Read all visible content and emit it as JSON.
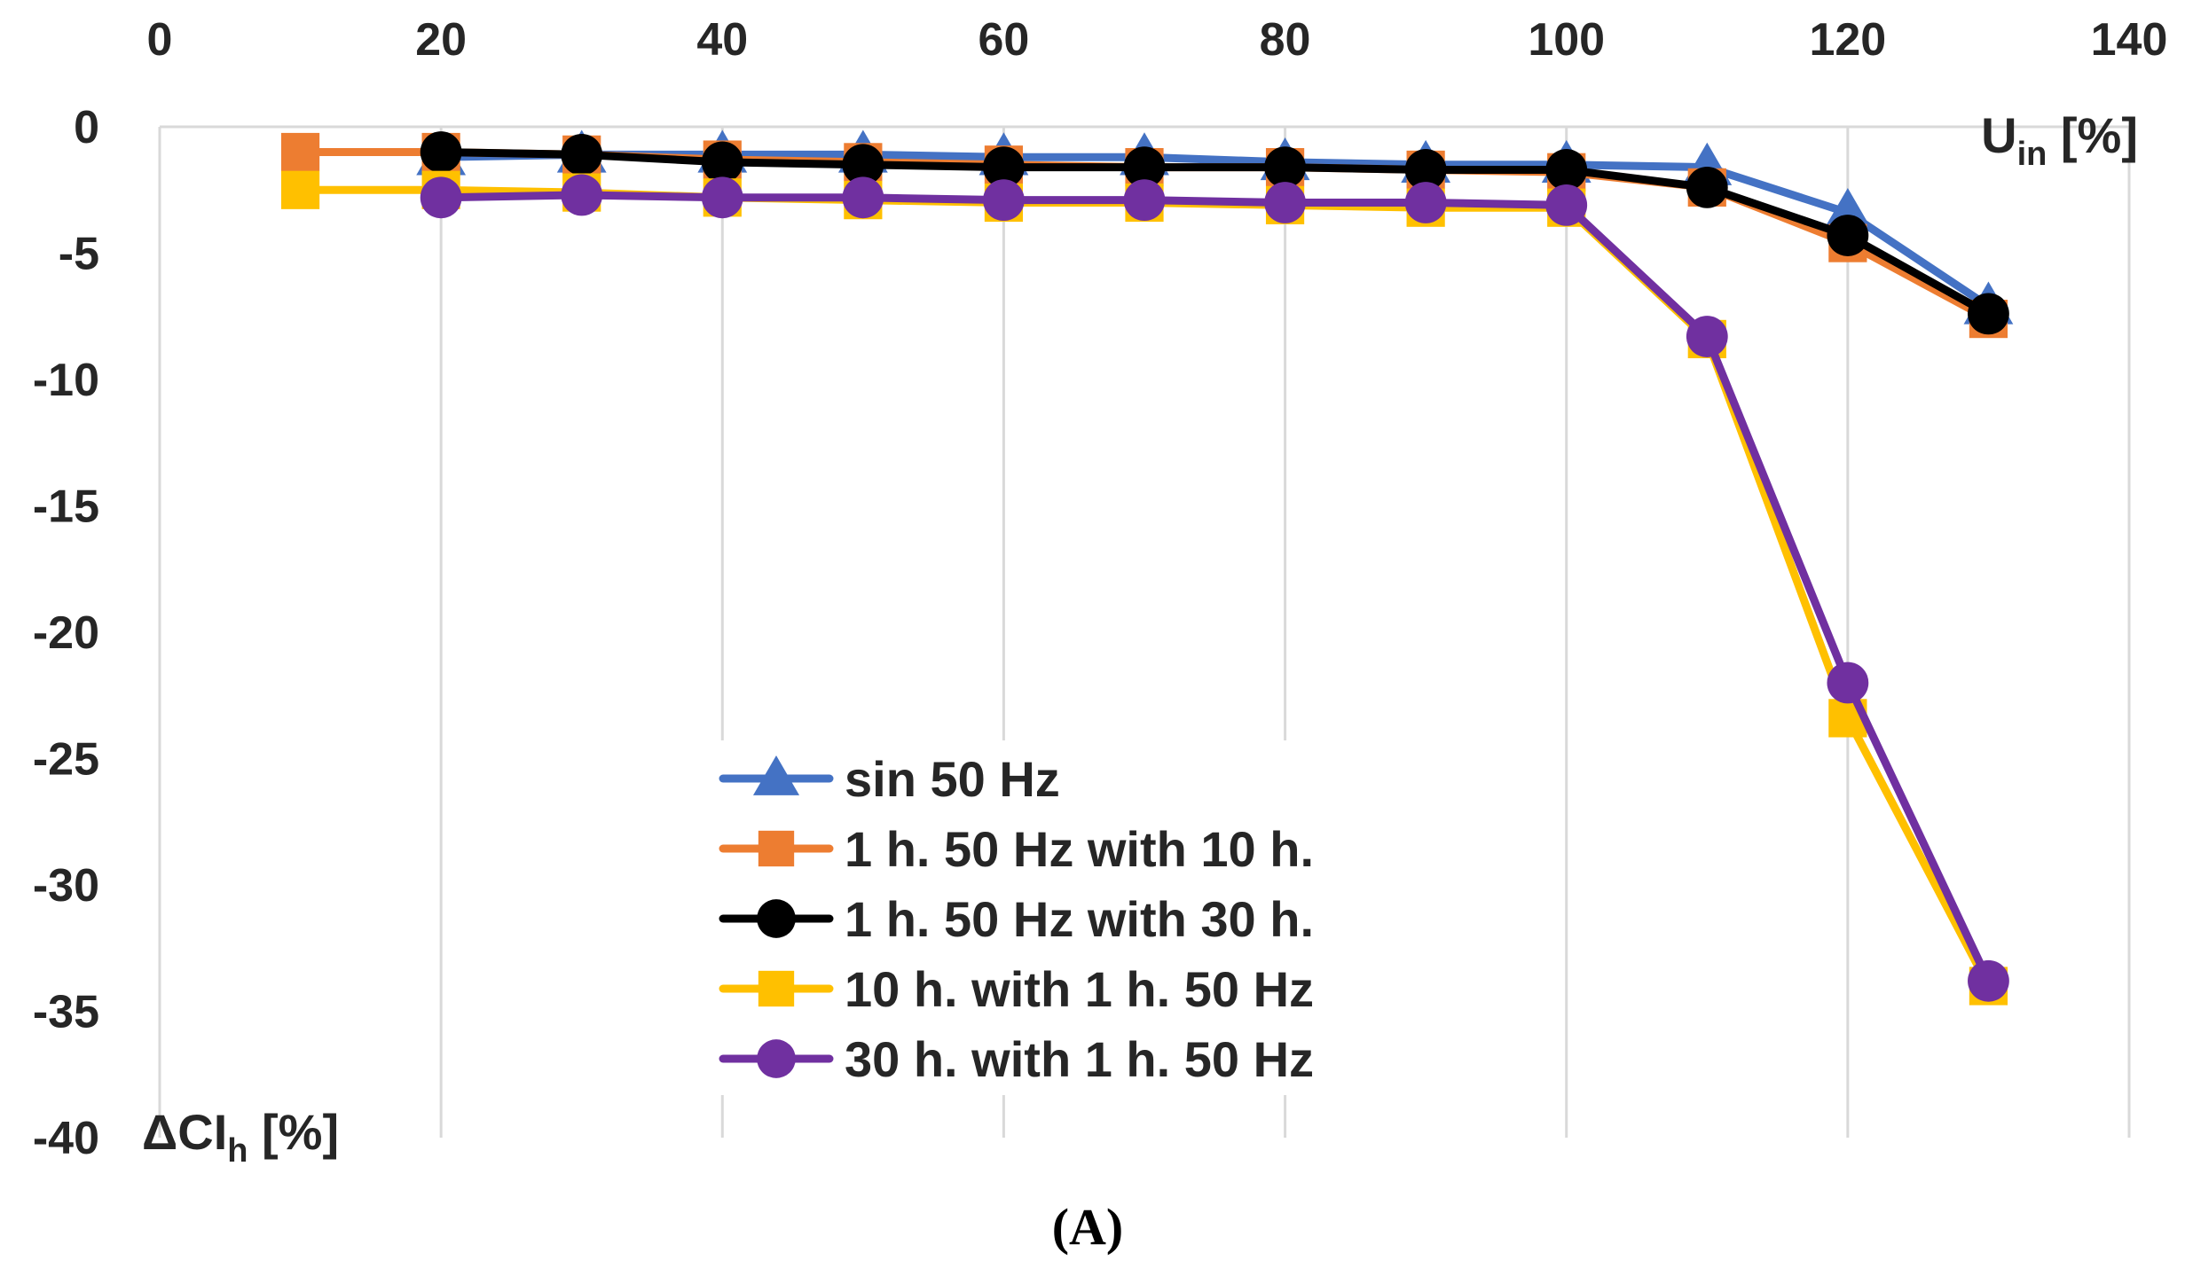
{
  "chart_data": {
    "type": "line",
    "x_axis": {
      "title_main": "U",
      "title_sub": "in",
      "title_unit": " [%]",
      "range": [
        0,
        140
      ],
      "ticks": [
        0,
        20,
        40,
        60,
        80,
        100,
        120,
        140
      ],
      "position": "top"
    },
    "y_axis": {
      "title_main": "ΔCI",
      "title_sub": "h",
      "title_unit": " [%]",
      "range": [
        -40,
        0
      ],
      "ticks": [
        0,
        -5,
        -10,
        -15,
        -20,
        -25,
        -30,
        -35,
        -40
      ]
    },
    "grid": "vertical",
    "legend_position": "bottom-center",
    "series": [
      {
        "name": "sin 50 Hz",
        "color": "#4472C4",
        "marker": "triangle",
        "x": [
          20,
          30,
          40,
          50,
          60,
          70,
          80,
          90,
          100,
          110,
          120,
          130
        ],
        "y": [
          -1.2,
          -1.1,
          -1.1,
          -1.1,
          -1.2,
          -1.2,
          -1.4,
          -1.5,
          -1.5,
          -1.6,
          -3.4,
          -7.1
        ]
      },
      {
        "name": "1 h. 50 Hz with 10 h.",
        "color": "#ED7D31",
        "marker": "square",
        "x": [
          10,
          20,
          30,
          40,
          50,
          60,
          70,
          80,
          90,
          100,
          110,
          120,
          130
        ],
        "y": [
          -1.0,
          -1.0,
          -1.1,
          -1.3,
          -1.4,
          -1.5,
          -1.6,
          -1.6,
          -1.7,
          -1.8,
          -2.4,
          -4.6,
          -7.6
        ]
      },
      {
        "name": "1 h. 50 Hz with 30 h.",
        "color": "#000000",
        "marker": "circle",
        "x": [
          20,
          30,
          40,
          50,
          60,
          70,
          80,
          90,
          100,
          110,
          120,
          130
        ],
        "y": [
          -1.0,
          -1.1,
          -1.4,
          -1.5,
          -1.6,
          -1.6,
          -1.6,
          -1.7,
          -1.7,
          -2.4,
          -4.3,
          -7.4
        ]
      },
      {
        "name": "10 h. with 1 h. 50 Hz",
        "color": "#FFC000",
        "marker": "square",
        "x": [
          10,
          20,
          30,
          40,
          50,
          60,
          70,
          80,
          90,
          100,
          110,
          120,
          130
        ],
        "y": [
          -2.5,
          -2.5,
          -2.6,
          -2.8,
          -2.9,
          -3.0,
          -3.0,
          -3.1,
          -3.2,
          -3.2,
          -8.4,
          -23.4,
          -34.0
        ]
      },
      {
        "name": "30 h. with 1 h. 50 Hz",
        "color": "#7030A0",
        "marker": "circle",
        "x": [
          20,
          30,
          40,
          50,
          60,
          70,
          80,
          90,
          100,
          110,
          120,
          130
        ],
        "y": [
          -2.8,
          -2.7,
          -2.8,
          -2.8,
          -2.9,
          -2.9,
          -3.0,
          -3.0,
          -3.1,
          -8.3,
          -22.0,
          -33.8
        ]
      }
    ]
  },
  "caption": "(A)"
}
